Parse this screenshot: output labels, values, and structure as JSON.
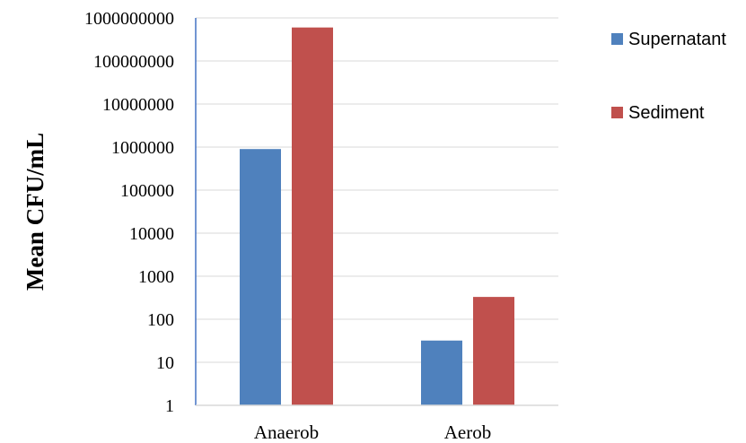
{
  "chart_data": {
    "type": "bar",
    "ylabel": "Mean CFU/mL",
    "xlabel": "",
    "title": "",
    "yscale": "log",
    "ylim": [
      1,
      1000000000
    ],
    "yticks": [
      "1",
      "10",
      "100",
      "1000",
      "10000",
      "100000",
      "1000000",
      "10000000",
      "100000000",
      "1000000000"
    ],
    "categories": [
      "Anaerob",
      "Aerob"
    ],
    "series": [
      {
        "name": "Supernatant",
        "color": "#4f81bd",
        "values": [
          900000,
          32
        ]
      },
      {
        "name": "Sediment",
        "color": "#c0504d",
        "values": [
          600000000,
          330
        ]
      }
    ],
    "grid": true,
    "legend": "right"
  }
}
